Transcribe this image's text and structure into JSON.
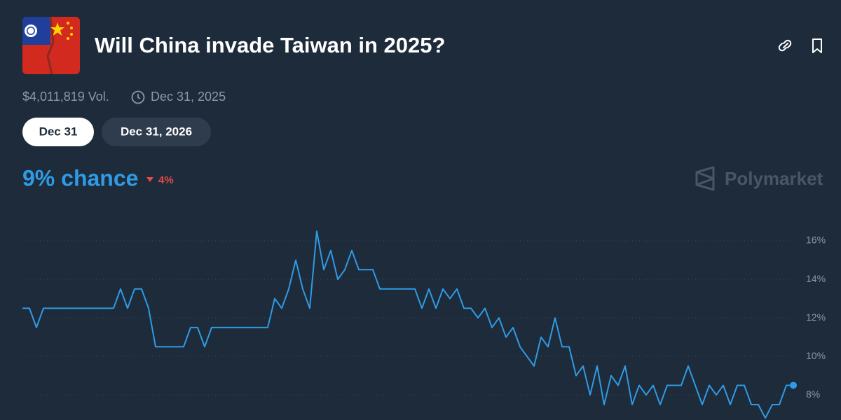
{
  "header": {
    "title": "Will China invade Taiwan in 2025?",
    "volume": "$4,011,819 Vol.",
    "end_date": "Dec 31, 2025",
    "tabs": [
      "Dec 31",
      "Dec 31, 2026"
    ],
    "chance": "9% chance",
    "change": "4%",
    "brand": "Polymarket"
  },
  "chart_data": {
    "type": "line",
    "series": [
      {
        "color": "#2f9be4",
        "values": [
          12.5,
          12.5,
          11.5,
          12.5,
          12.5,
          12.5,
          12.5,
          12.5,
          12.5,
          12.5,
          12.5,
          12.5,
          12.5,
          12.5,
          13.5,
          12.5,
          13.5,
          13.5,
          12.5,
          10.5,
          10.5,
          10.5,
          10.5,
          10.5,
          11.5,
          11.5,
          10.5,
          11.5,
          11.5,
          11.5,
          11.5,
          11.5,
          11.5,
          11.5,
          11.5,
          11.5,
          13,
          12.5,
          13.5,
          15,
          13.5,
          12.5,
          16.5,
          14.5,
          15.5,
          14,
          14.5,
          15.5,
          14.5,
          14.5,
          14.5,
          13.5,
          13.5,
          13.5,
          13.5,
          13.5,
          13.5,
          12.5,
          13.5,
          12.5,
          13.5,
          13,
          13.5,
          12.5,
          12.5,
          12,
          12.5,
          11.5,
          12,
          11,
          11.5,
          10.5,
          10,
          9.5,
          11,
          10.5,
          12,
          10.5,
          10.5,
          9,
          9.5,
          8,
          9.5,
          7.5,
          9,
          8.5,
          9.5,
          7.5,
          8.5,
          8,
          8.5,
          7.5,
          8.5,
          8.5,
          8.5,
          9.5,
          8.5,
          7.5,
          8.5,
          8,
          8.5,
          7.5,
          8.5,
          8.5,
          7.5,
          7.5,
          6.8,
          7.5,
          7.5,
          8.5,
          8.5
        ]
      }
    ],
    "ylim": [
      6.7,
      17.6
    ],
    "yticks": [
      {
        "value": 8,
        "label": "8%"
      },
      {
        "value": 10,
        "label": "10%"
      },
      {
        "value": 12,
        "label": "12%"
      },
      {
        "value": 14,
        "label": "14%"
      },
      {
        "value": 16,
        "label": "16%"
      }
    ],
    "grid": true
  }
}
